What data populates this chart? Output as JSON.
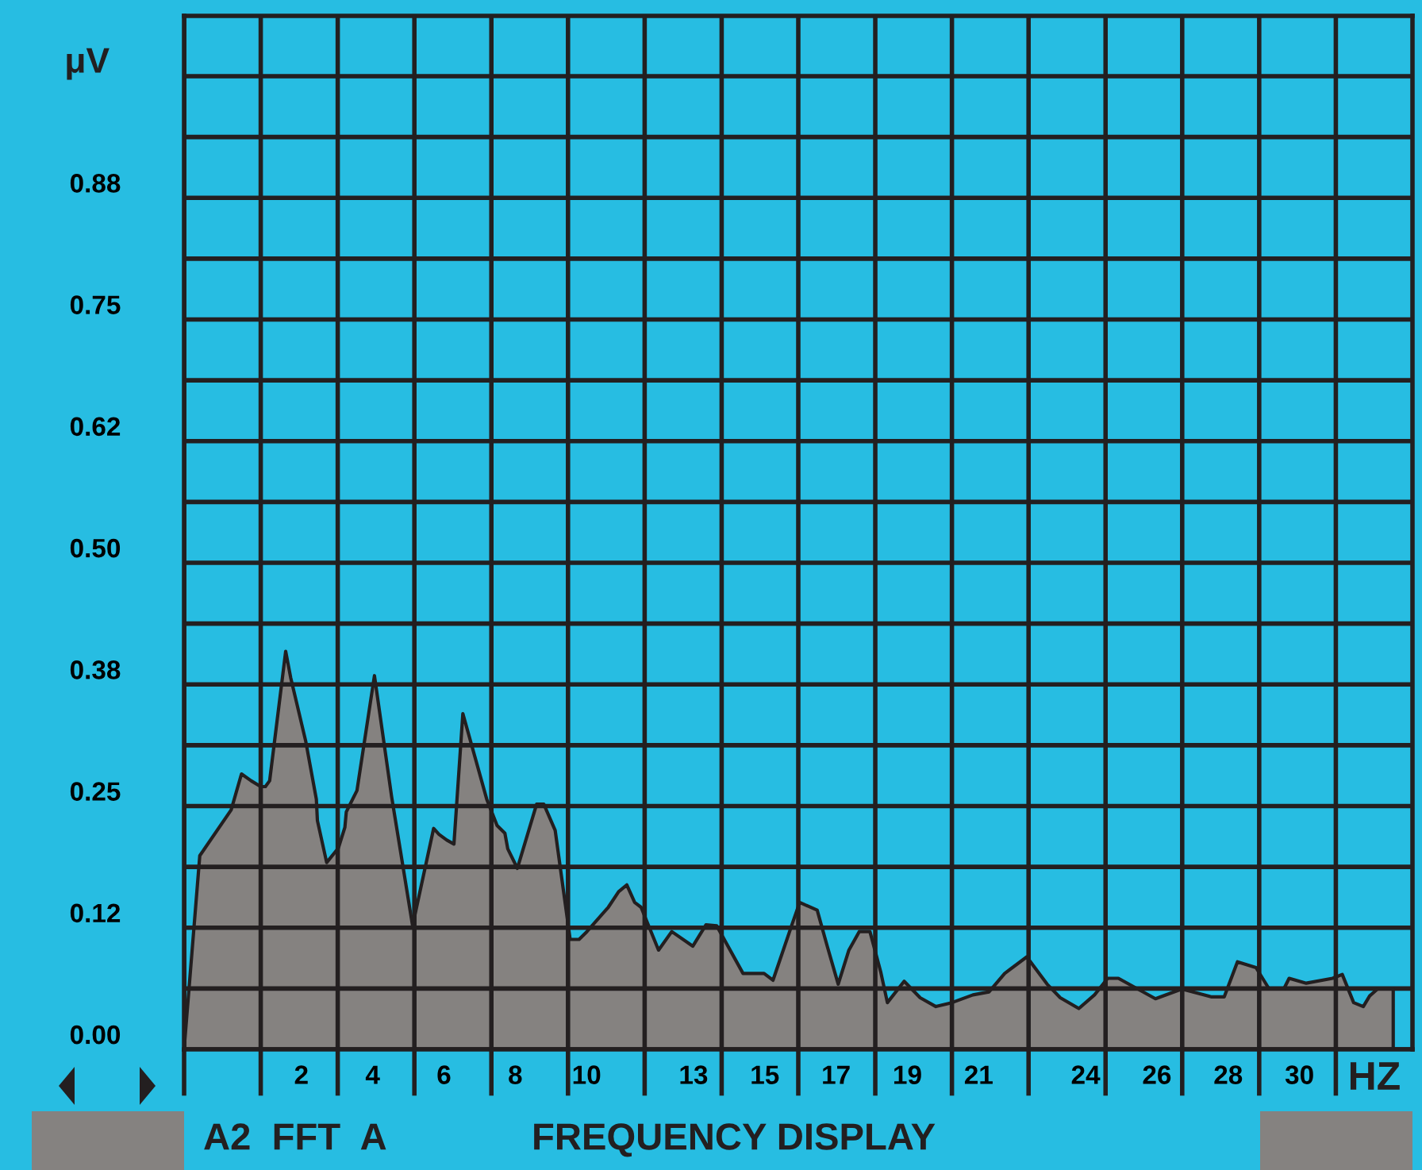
{
  "chart_data": {
    "type": "area",
    "xlabel": "HZ",
    "ylabel": "μV",
    "x": [
      -1.29,
      -0.85,
      0.03,
      0.32,
      0.59,
      0.86,
      0.99,
      1.11,
      1.56,
      1.7,
      2.12,
      2.42,
      2.45,
      2.71,
      3.04,
      3.22,
      3.26,
      3.56,
      4.05,
      4.53,
      5.12,
      5.71,
      5.86,
      6.08,
      6.28,
      6.53,
      7.2,
      7.49,
      7.71,
      7.79,
      8.06,
      8.6,
      8.8,
      9.12,
      9.54,
      9.79,
      10.01,
      10.61,
      10.9,
      11.13,
      11.35,
      11.53,
      12.02,
      12.39,
      12.98,
      13.35,
      13.65,
      14.39,
      14.98,
      15.23,
      15.77,
      15.98,
      16.47,
      16.76,
      17.06,
      17.36,
      17.65,
      17.95,
      18.25,
      18.44,
      18.91,
      19.36,
      19.8,
      20.25,
      20.84,
      21.29,
      21.73,
      22.35,
      22.92,
      23.29,
      23.81,
      24.25,
      24.62,
      24.92,
      25.96,
      26.7,
      27.52,
      27.89,
      28.26,
      28.78,
      29.15,
      29.56,
      29.71,
      30.19,
      30.93,
      31.2,
      31.52,
      31.79,
      31.97,
      32.19,
      32.63,
      32.63
    ],
    "values": [
      0,
      0.199,
      0.246,
      0.283,
      0.276,
      0.27,
      0.27,
      0.276,
      0.409,
      0.382,
      0.317,
      0.257,
      0.235,
      0.192,
      0.207,
      0.228,
      0.244,
      0.266,
      0.384,
      0.26,
      0.127,
      0.227,
      0.221,
      0.215,
      0.211,
      0.345,
      0.257,
      0.23,
      0.222,
      0.206,
      0.186,
      0.252,
      0.252,
      0.225,
      0.113,
      0.113,
      0.121,
      0.146,
      0.162,
      0.169,
      0.151,
      0.146,
      0.102,
      0.121,
      0.106,
      0.128,
      0.127,
      0.078,
      0.078,
      0.071,
      0.129,
      0.151,
      0.143,
      0.105,
      0.067,
      0.102,
      0.121,
      0.121,
      0.08,
      0.048,
      0.07,
      0.053,
      0.044,
      0.048,
      0.056,
      0.059,
      0.078,
      0.095,
      0.067,
      0.053,
      0.042,
      0.056,
      0.073,
      0.073,
      0.052,
      0.062,
      0.054,
      0.054,
      0.09,
      0.084,
      0.062,
      0.062,
      0.073,
      0.068,
      0.073,
      0.077,
      0.048,
      0.044,
      0.055,
      0.062,
      0.062,
      0
    ],
    "color": "#858280",
    "xlim": [
      -1.29,
      33.17
    ],
    "ylim": [
      0,
      1.062
    ],
    "xticks": [
      {
        "value": -1.29,
        "label": null
      },
      {
        "value": 0.86,
        "label": null
      },
      {
        "value": 3.02,
        "label": null
      },
      {
        "value": 5.17,
        "label": null
      },
      {
        "value": 7.33,
        "label": null
      },
      {
        "value": 9.48,
        "label": null
      },
      {
        "value": 11.63,
        "label": null
      },
      {
        "value": 13.79,
        "label": null
      },
      {
        "value": 15.94,
        "label": null
      },
      {
        "value": 18.1,
        "label": null
      },
      {
        "value": 20.25,
        "label": null
      },
      {
        "value": 22.4,
        "label": null
      },
      {
        "value": 24.56,
        "label": null
      },
      {
        "value": 26.71,
        "label": null
      },
      {
        "value": 28.87,
        "label": null
      },
      {
        "value": 31.02,
        "label": null
      },
      2,
      4,
      6,
      8,
      10,
      13,
      15,
      17,
      19,
      21,
      24,
      26,
      28,
      30
    ],
    "yticks": [
      {
        "value": 0,
        "label": "0.00"
      },
      {
        "value": 0.0625,
        "label": null
      },
      {
        "value": 0.125,
        "label": "0.12"
      },
      {
        "value": 0.1875,
        "label": null
      },
      {
        "value": 0.25,
        "label": "0.25"
      },
      {
        "value": 0.3125,
        "label": null
      },
      {
        "value": 0.375,
        "label": "0.38"
      },
      {
        "value": 0.4375,
        "label": null
      },
      {
        "value": 0.5,
        "label": "0.50"
      },
      {
        "value": 0.5625,
        "label": null
      },
      {
        "value": 0.625,
        "label": "0.62"
      },
      {
        "value": 0.6875,
        "label": null
      },
      {
        "value": 0.75,
        "label": "0.75"
      },
      {
        "value": 0.8125,
        "label": null
      },
      {
        "value": 0.875,
        "label": "0.88"
      },
      {
        "value": 0.9375,
        "label": null
      },
      {
        "value": 1.0,
        "label": null
      }
    ],
    "grid": true,
    "annotations": [
      "A2  FFT  A",
      "FREQUENCY DISPLAY"
    ]
  }
}
